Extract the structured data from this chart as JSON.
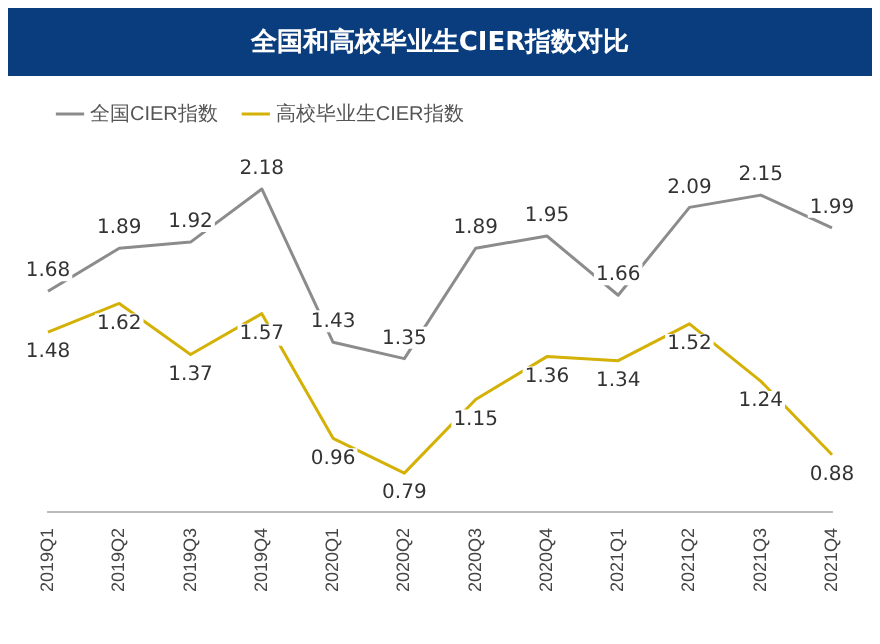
{
  "chart_data": {
    "type": "line",
    "title": "全国和高校毕业生CIER指数对比",
    "categories": [
      "2019Q1",
      "2019Q2",
      "2019Q3",
      "2019Q4",
      "2020Q1",
      "2020Q2",
      "2020Q3",
      "2020Q4",
      "2021Q1",
      "2021Q2",
      "2021Q3",
      "2021Q4"
    ],
    "series": [
      {
        "name": "全国CIER指数",
        "color": "#8c8c8c",
        "values": [
          1.68,
          1.89,
          1.92,
          2.18,
          1.43,
          1.35,
          1.89,
          1.95,
          1.66,
          2.09,
          2.15,
          1.99
        ]
      },
      {
        "name": "高校毕业生CIER指数",
        "color": "#d4b106",
        "values": [
          1.48,
          1.62,
          1.37,
          1.57,
          0.96,
          0.79,
          1.15,
          1.36,
          1.34,
          1.52,
          1.24,
          0.88
        ]
      }
    ],
    "relative": false,
    "data_labels": true,
    "legend": "top left",
    "grid": false,
    "marker": "none",
    "line_style": "solid"
  }
}
